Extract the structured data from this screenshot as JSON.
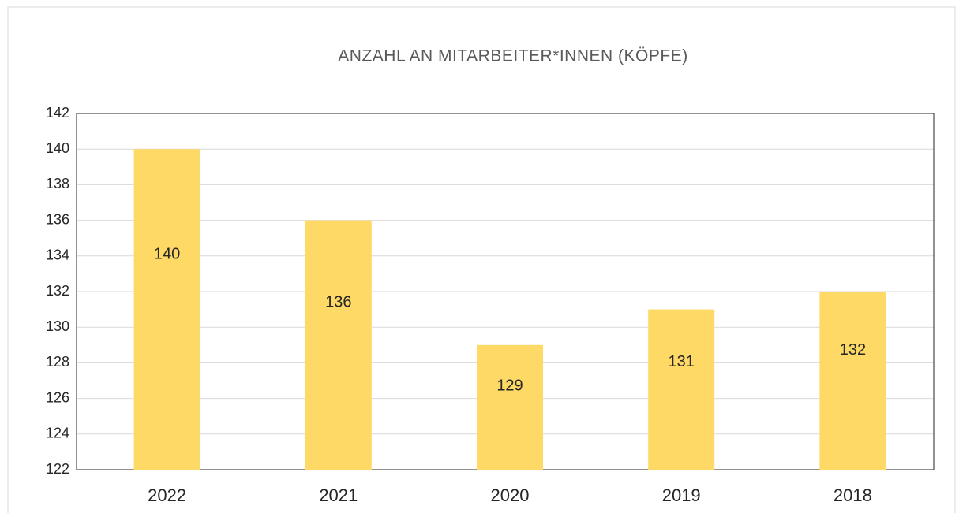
{
  "chart_data": {
    "type": "bar",
    "title": "ANZAHL AN MITARBEITER*INNEN (KÖPFE)",
    "categories": [
      "2022",
      "2021",
      "2020",
      "2019",
      "2018"
    ],
    "values": [
      140,
      136,
      129,
      131,
      132
    ],
    "color": "#ffd966",
    "ylim": [
      122,
      142
    ],
    "yticks": [
      122,
      124,
      126,
      128,
      130,
      132,
      134,
      136,
      138,
      140,
      142
    ],
    "grid": true
  }
}
